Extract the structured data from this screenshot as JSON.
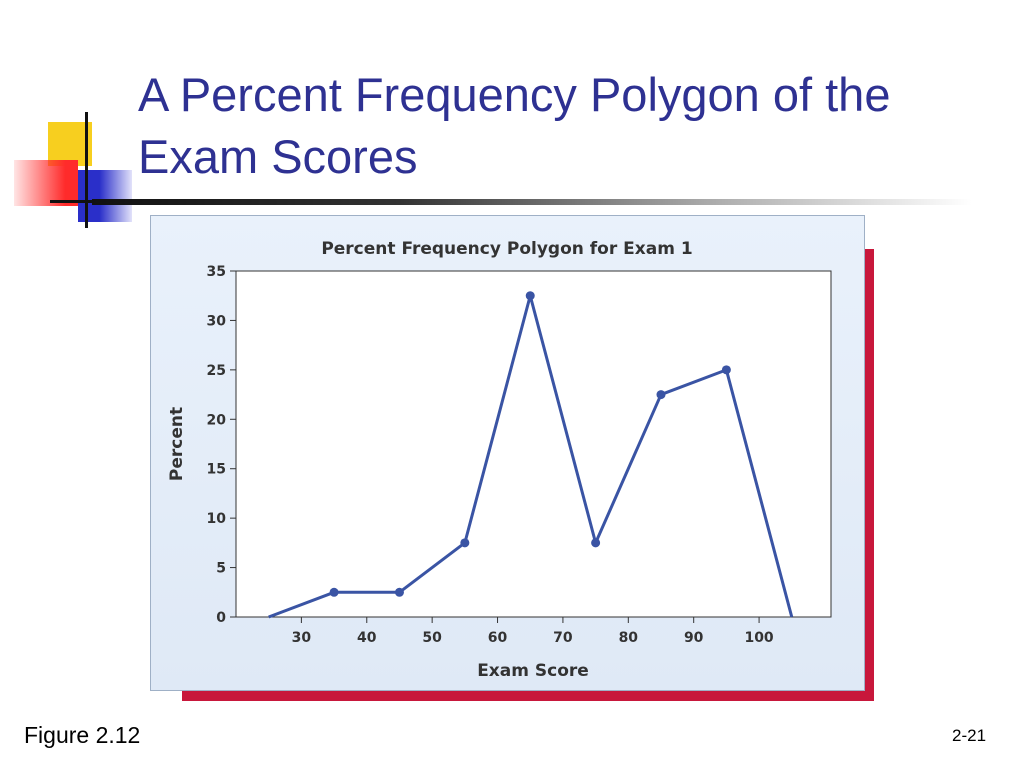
{
  "slide": {
    "title": "A Percent Frequency Polygon of the Exam Scores",
    "figure_label": "Figure 2.12",
    "page_number": "2-21"
  },
  "colors": {
    "title": "#2e3192",
    "series_line": "#3a54a4",
    "shadow_panel": "#c8173b"
  },
  "chart_data": {
    "type": "line",
    "title": "Percent Frequency Polygon for Exam 1",
    "xlabel": "Exam Score",
    "ylabel": "Percent",
    "xlim": [
      20,
      111
    ],
    "ylim": [
      0,
      35
    ],
    "xticks": [
      30,
      40,
      50,
      60,
      70,
      80,
      90,
      100
    ],
    "yticks": [
      0,
      5,
      10,
      15,
      20,
      25,
      30,
      35
    ],
    "grid": false,
    "series": [
      {
        "x": [
          25,
          35,
          45,
          55,
          65,
          75,
          85,
          95,
          105
        ],
        "y": [
          0,
          2.5,
          2.5,
          7.5,
          32.5,
          7.5,
          22.5,
          25,
          0
        ],
        "markers": [
          false,
          true,
          true,
          true,
          true,
          true,
          true,
          true,
          false
        ]
      }
    ]
  }
}
